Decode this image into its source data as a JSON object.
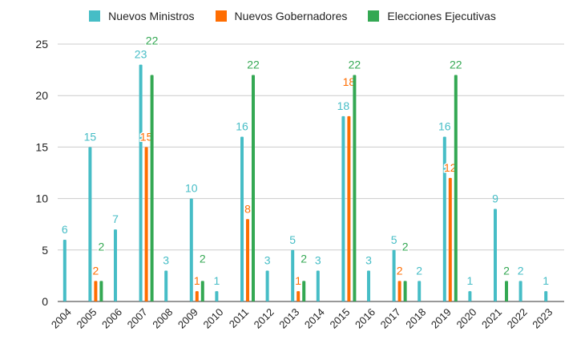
{
  "chart_data": {
    "type": "bar",
    "title": "",
    "xlabel": "",
    "ylabel": "",
    "ylim": [
      0,
      25
    ],
    "yticks": [
      0,
      5,
      10,
      15,
      20,
      25
    ],
    "grid": true,
    "legend_position": "top",
    "categories": [
      "2004",
      "2005",
      "2006",
      "2007",
      "2008",
      "2009",
      "2010",
      "2011",
      "2012",
      "2013",
      "2014",
      "2015",
      "2016",
      "2017",
      "2018",
      "2019",
      "2020",
      "2021",
      "2022",
      "2023"
    ],
    "series": [
      {
        "name": "Nuevos Ministros",
        "color": "#46BDC6",
        "values": [
          6,
          15,
          7,
          23,
          3,
          10,
          1,
          16,
          3,
          5,
          3,
          18,
          3,
          5,
          2,
          16,
          1,
          9,
          2,
          1
        ]
      },
      {
        "name": "Nuevos Gobernadores",
        "color": "#FF6D01",
        "values": [
          null,
          2,
          null,
          15,
          null,
          1,
          null,
          8,
          null,
          1,
          null,
          18,
          null,
          2,
          null,
          12,
          null,
          null,
          null,
          null
        ]
      },
      {
        "name": "Elecciones Ejecutivas",
        "color": "#34A853",
        "values": [
          null,
          2,
          null,
          22,
          null,
          2,
          null,
          22,
          null,
          2,
          null,
          22,
          null,
          2,
          null,
          22,
          null,
          2,
          null,
          null
        ]
      }
    ]
  }
}
